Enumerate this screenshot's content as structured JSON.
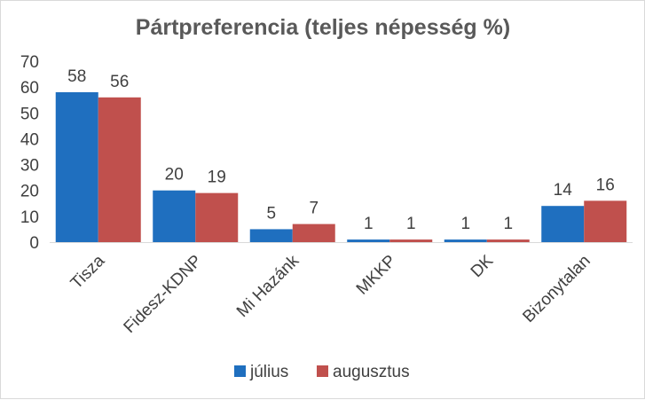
{
  "chart_data": {
    "type": "bar",
    "title": "Pártpreferencia (teljes népesség %)",
    "categories": [
      "Tisza",
      "Fidesz-KDNP",
      "Mi Hazánk",
      "MKKP",
      "DK",
      "Bizonytalan"
    ],
    "series": [
      {
        "name": "július",
        "values": [
          58,
          20,
          5,
          1,
          1,
          14
        ],
        "color": "#1f6fbf"
      },
      {
        "name": "augusztus",
        "values": [
          56,
          19,
          7,
          1,
          1,
          16
        ],
        "color": "#c0504d"
      }
    ],
    "ylim": [
      0,
      70
    ],
    "yticks": [
      0,
      10,
      20,
      30,
      40,
      50,
      60,
      70
    ],
    "grid": false,
    "data_labels": true,
    "legend_position": "bottom"
  }
}
